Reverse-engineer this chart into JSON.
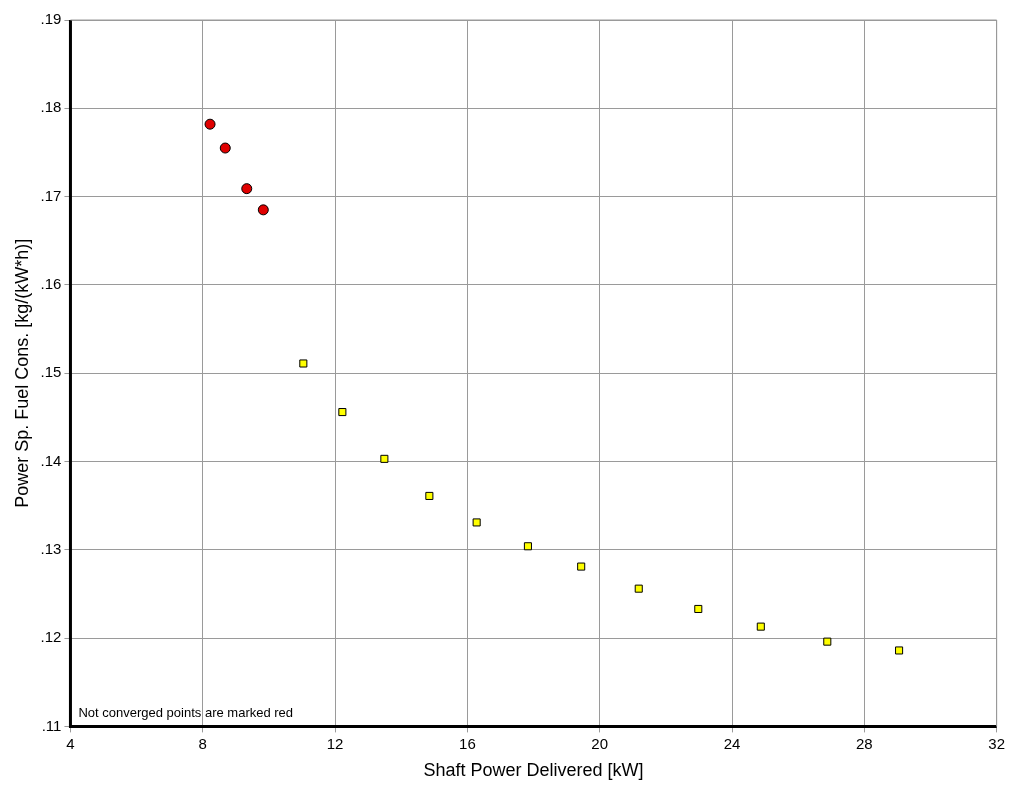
{
  "chart_data": {
    "type": "scatter",
    "xlabel": "Shaft Power Delivered [kW]",
    "ylabel": "Power Sp. Fuel Cons. [kg/(kW*h)]",
    "annotations": [
      "Not converged points are marked red"
    ],
    "xlim": [
      4,
      32
    ],
    "xticks": [
      4,
      8,
      12,
      16,
      20,
      24,
      28,
      32
    ],
    "ylim": [
      0.11,
      0.19
    ],
    "yticks": [
      {
        "value": 0.11,
        "label": ".11"
      },
      {
        "value": 0.12,
        "label": ".12"
      },
      {
        "value": 0.13,
        "label": ".13"
      },
      {
        "value": 0.14,
        "label": ".14"
      },
      {
        "value": 0.15,
        "label": ".15"
      },
      {
        "value": 0.16,
        "label": ".16"
      },
      {
        "value": 0.17,
        "label": ".17"
      },
      {
        "value": 0.18,
        "label": ".18"
      },
      {
        "value": 0.19,
        "label": ".19"
      }
    ],
    "grid": true,
    "legend": false,
    "series": [
      {
        "color": "#e00000",
        "marker": "circle",
        "x": [
          8.22,
          8.68,
          9.33,
          9.83
        ],
        "values": [
          0.1782,
          0.1755,
          0.1709,
          0.1685
        ]
      },
      {
        "color": "#ffff00",
        "marker": "square",
        "x": [
          11.04,
          12.22,
          13.49,
          14.85,
          16.28,
          17.83,
          19.44,
          21.18,
          22.98,
          24.87,
          26.88,
          29.05
        ],
        "values": [
          0.1511,
          0.1456,
          0.1403,
          0.1361,
          0.1331,
          0.1304,
          0.1281,
          0.1256,
          0.1233,
          0.1213,
          0.1196,
          0.1186
        ]
      }
    ]
  }
}
